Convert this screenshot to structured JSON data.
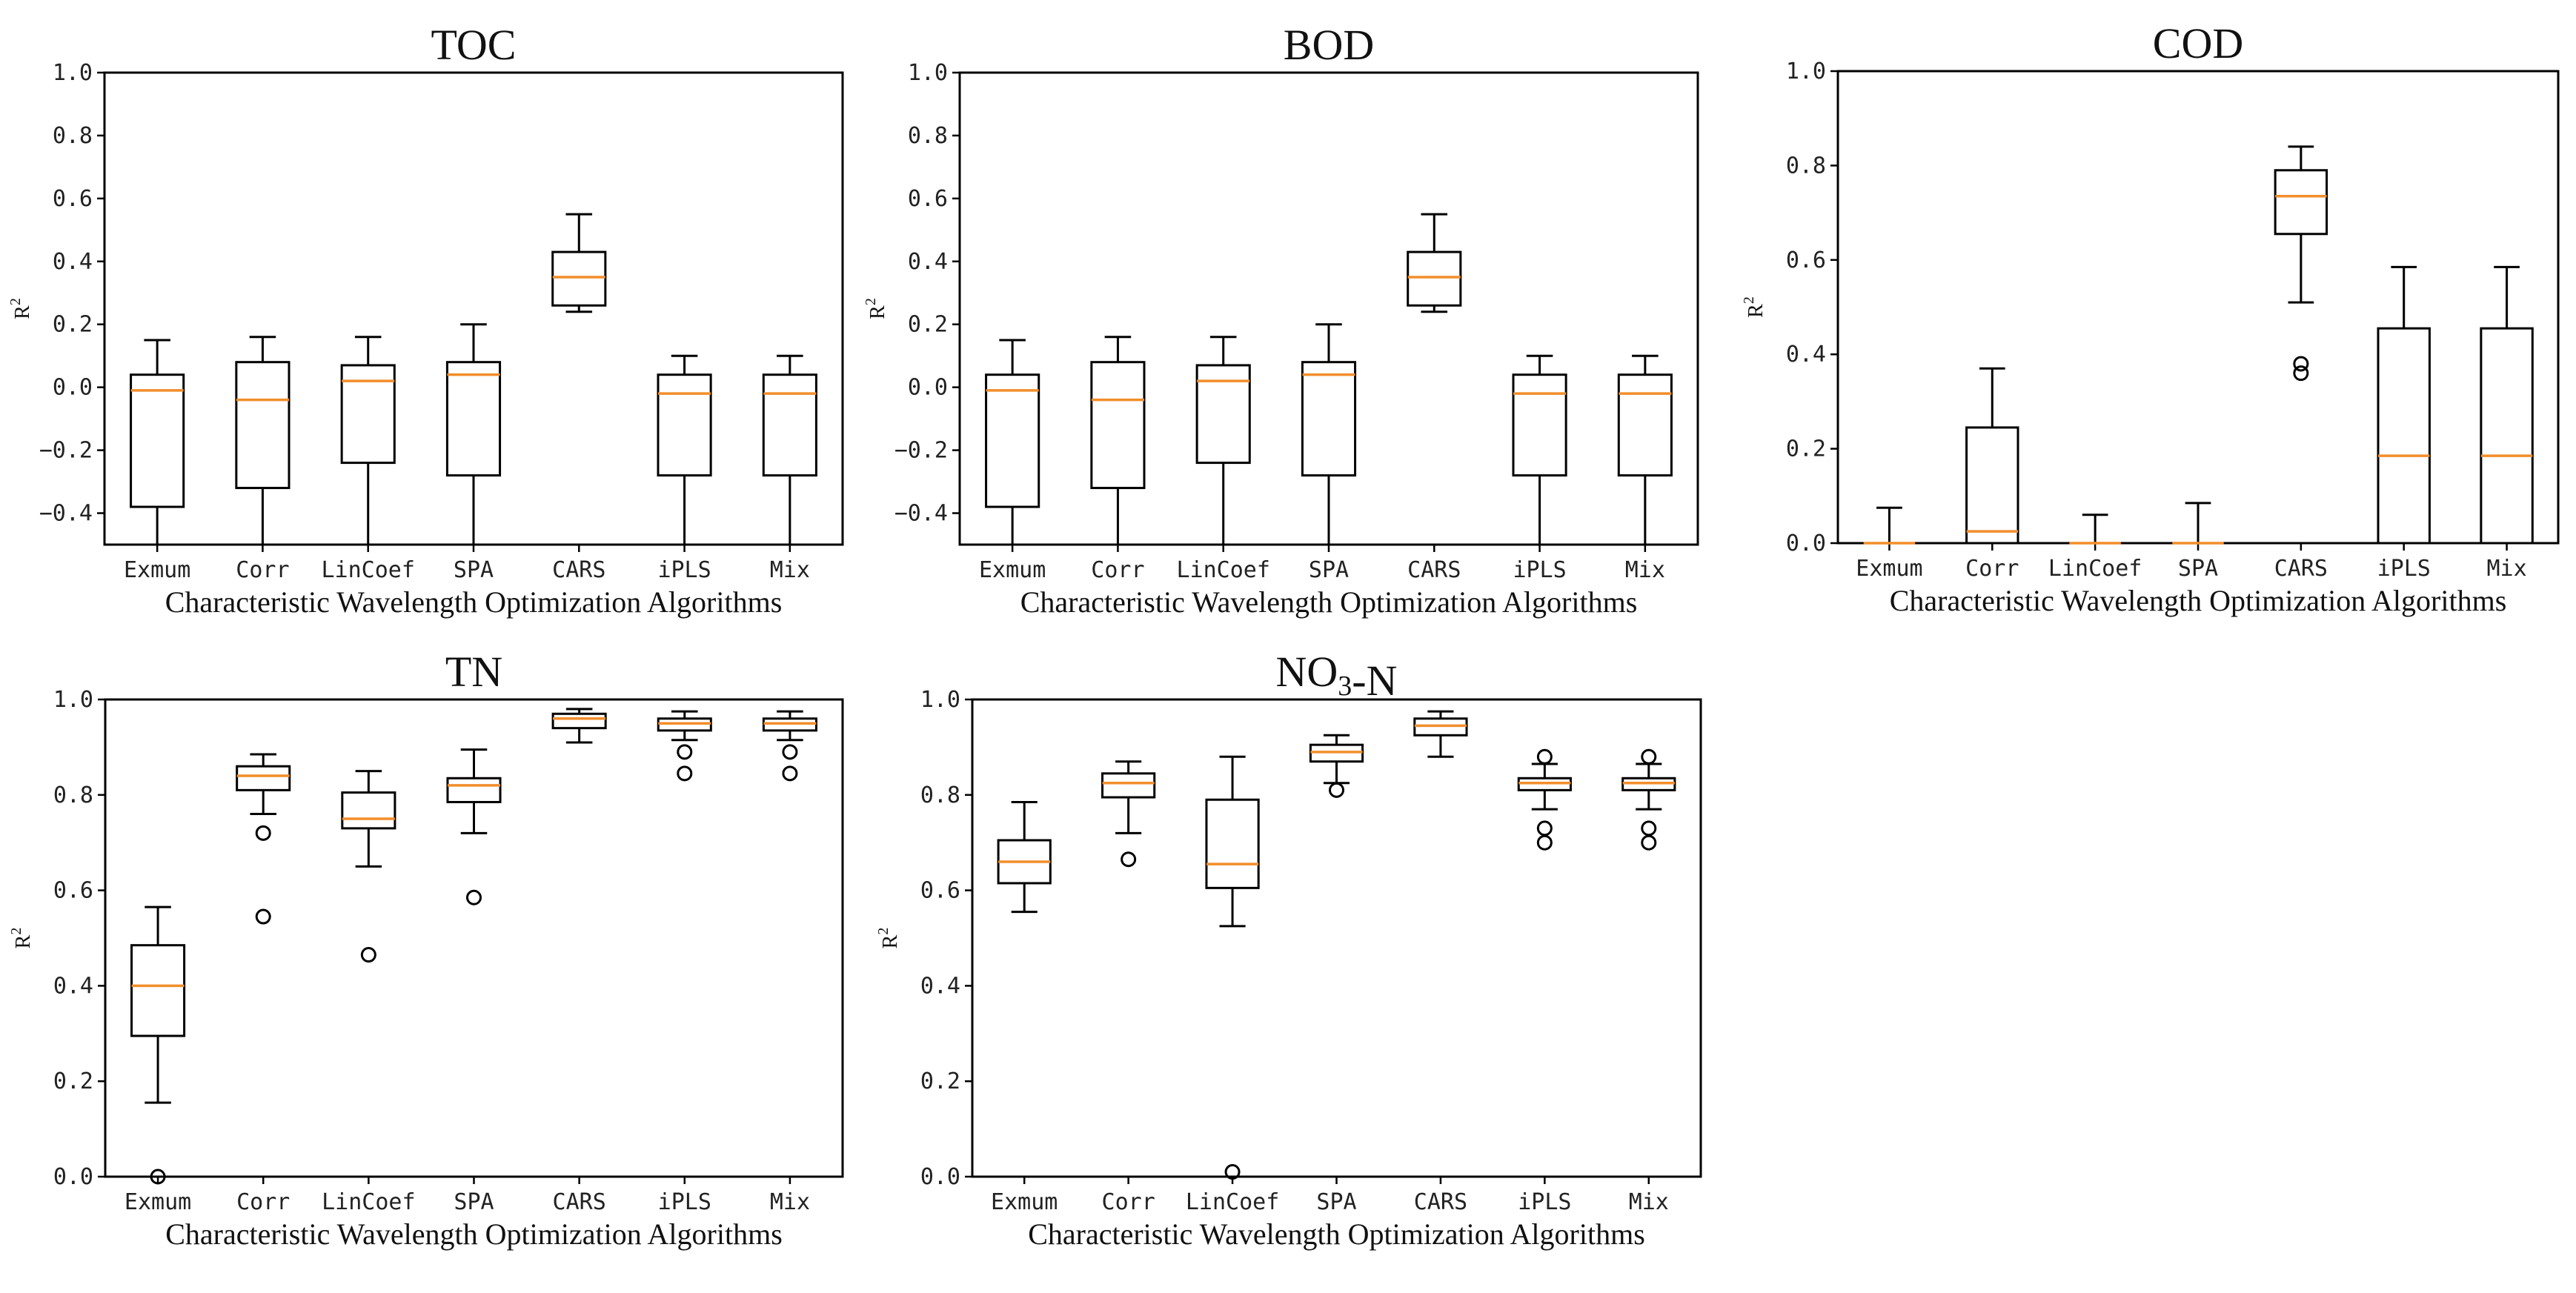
{
  "figure": {
    "categories": [
      "Exmum",
      "Corr",
      "LinCoef",
      "SPA",
      "CARS",
      "iPLS",
      "Mix"
    ],
    "xlabel": "Characteristic Wavelength Optimization Algorithms",
    "ylabel_base": "R",
    "ylabel_sup": "2",
    "colors": {
      "box": "#000000",
      "median": "#f28e2b",
      "background": "#ffffff"
    }
  },
  "chart_data": [
    {
      "type": "box",
      "title": "TOC",
      "title_parts": [
        {
          "text": "TOC",
          "sub": false
        }
      ],
      "ylim": [
        -0.5,
        1.0
      ],
      "yticks": [
        -0.4,
        -0.2,
        0.0,
        0.2,
        0.4,
        0.6,
        0.8,
        1.0
      ],
      "ytick_labels": [
        "−0.4",
        "−0.2",
        "0.0",
        "0.2",
        "0.4",
        "0.6",
        "0.8",
        "1.0"
      ],
      "boxes": [
        {
          "category": "Exmum",
          "whislo": -0.5,
          "q1": -0.38,
          "med": -0.01,
          "q3": 0.04,
          "whishi": 0.15,
          "fliers": []
        },
        {
          "category": "Corr",
          "whislo": -0.5,
          "q1": -0.32,
          "med": -0.04,
          "q3": 0.08,
          "whishi": 0.16,
          "fliers": []
        },
        {
          "category": "LinCoef",
          "whislo": -0.5,
          "q1": -0.24,
          "med": 0.02,
          "q3": 0.07,
          "whishi": 0.16,
          "fliers": []
        },
        {
          "category": "SPA",
          "whislo": -0.5,
          "q1": -0.28,
          "med": 0.04,
          "q3": 0.08,
          "whishi": 0.2,
          "fliers": []
        },
        {
          "category": "CARS",
          "whislo": 0.24,
          "q1": 0.26,
          "med": 0.35,
          "q3": 0.43,
          "whishi": 0.55,
          "fliers": []
        },
        {
          "category": "iPLS",
          "whislo": -0.5,
          "q1": -0.28,
          "med": -0.02,
          "q3": 0.04,
          "whishi": 0.1,
          "fliers": []
        },
        {
          "category": "Mix",
          "whislo": -0.5,
          "q1": -0.28,
          "med": -0.02,
          "q3": 0.04,
          "whishi": 0.1,
          "fliers": []
        }
      ]
    },
    {
      "type": "box",
      "title": "BOD",
      "title_parts": [
        {
          "text": "BOD",
          "sub": false
        }
      ],
      "ylim": [
        -0.5,
        1.0
      ],
      "yticks": [
        -0.4,
        -0.2,
        0.0,
        0.2,
        0.4,
        0.6,
        0.8,
        1.0
      ],
      "ytick_labels": [
        "−0.4",
        "−0.2",
        "0.0",
        "0.2",
        "0.4",
        "0.6",
        "0.8",
        "1.0"
      ],
      "boxes": [
        {
          "category": "Exmum",
          "whislo": -0.5,
          "q1": -0.38,
          "med": -0.01,
          "q3": 0.04,
          "whishi": 0.15,
          "fliers": []
        },
        {
          "category": "Corr",
          "whislo": -0.5,
          "q1": -0.32,
          "med": -0.04,
          "q3": 0.08,
          "whishi": 0.16,
          "fliers": []
        },
        {
          "category": "LinCoef",
          "whislo": -0.5,
          "q1": -0.24,
          "med": 0.02,
          "q3": 0.07,
          "whishi": 0.16,
          "fliers": []
        },
        {
          "category": "SPA",
          "whislo": -0.5,
          "q1": -0.28,
          "med": 0.04,
          "q3": 0.08,
          "whishi": 0.2,
          "fliers": []
        },
        {
          "category": "CARS",
          "whislo": 0.24,
          "q1": 0.26,
          "med": 0.35,
          "q3": 0.43,
          "whishi": 0.55,
          "fliers": []
        },
        {
          "category": "iPLS",
          "whislo": -0.5,
          "q1": -0.28,
          "med": -0.02,
          "q3": 0.04,
          "whishi": 0.1,
          "fliers": []
        },
        {
          "category": "Mix",
          "whislo": -0.5,
          "q1": -0.28,
          "med": -0.02,
          "q3": 0.04,
          "whishi": 0.1,
          "fliers": []
        }
      ]
    },
    {
      "type": "box",
      "title": "COD",
      "title_parts": [
        {
          "text": "COD",
          "sub": false
        }
      ],
      "ylim": [
        0.0,
        1.0
      ],
      "yticks": [
        0.0,
        0.2,
        0.4,
        0.6,
        0.8,
        1.0
      ],
      "ytick_labels": [
        "0.0",
        "0.2",
        "0.4",
        "0.6",
        "0.8",
        "1.0"
      ],
      "boxes": [
        {
          "category": "Exmum",
          "whislo": 0.0,
          "q1": 0.0,
          "med": 0.0,
          "q3": 0.0,
          "whishi": 0.075,
          "fliers": []
        },
        {
          "category": "Corr",
          "whislo": 0.0,
          "q1": 0.0,
          "med": 0.025,
          "q3": 0.245,
          "whishi": 0.37,
          "fliers": []
        },
        {
          "category": "LinCoef",
          "whislo": 0.0,
          "q1": 0.0,
          "med": 0.0,
          "q3": 0.0,
          "whishi": 0.06,
          "fliers": []
        },
        {
          "category": "SPA",
          "whislo": 0.0,
          "q1": 0.0,
          "med": 0.0,
          "q3": 0.0,
          "whishi": 0.085,
          "fliers": []
        },
        {
          "category": "CARS",
          "whislo": 0.51,
          "q1": 0.655,
          "med": 0.735,
          "q3": 0.79,
          "whishi": 0.84,
          "fliers": [
            0.38,
            0.36
          ]
        },
        {
          "category": "iPLS",
          "whislo": 0.0,
          "q1": 0.0,
          "med": 0.185,
          "q3": 0.455,
          "whishi": 0.585,
          "fliers": []
        },
        {
          "category": "Mix",
          "whislo": 0.0,
          "q1": 0.0,
          "med": 0.185,
          "q3": 0.455,
          "whishi": 0.585,
          "fliers": []
        }
      ]
    },
    {
      "type": "box",
      "title": "TN",
      "title_parts": [
        {
          "text": "TN",
          "sub": false
        }
      ],
      "ylim": [
        0.0,
        1.0
      ],
      "yticks": [
        0.0,
        0.2,
        0.4,
        0.6,
        0.8,
        1.0
      ],
      "ytick_labels": [
        "0.0",
        "0.2",
        "0.4",
        "0.6",
        "0.8",
        "1.0"
      ],
      "boxes": [
        {
          "category": "Exmum",
          "whislo": 0.155,
          "q1": 0.295,
          "med": 0.4,
          "q3": 0.485,
          "whishi": 0.565,
          "fliers": [
            0.0
          ]
        },
        {
          "category": "Corr",
          "whislo": 0.76,
          "q1": 0.81,
          "med": 0.84,
          "q3": 0.86,
          "whishi": 0.885,
          "fliers": [
            0.72,
            0.545
          ]
        },
        {
          "category": "LinCoef",
          "whislo": 0.65,
          "q1": 0.73,
          "med": 0.75,
          "q3": 0.805,
          "whishi": 0.85,
          "fliers": [
            0.465
          ]
        },
        {
          "category": "SPA",
          "whislo": 0.72,
          "q1": 0.785,
          "med": 0.82,
          "q3": 0.835,
          "whishi": 0.895,
          "fliers": [
            0.585
          ]
        },
        {
          "category": "CARS",
          "whislo": 0.91,
          "q1": 0.94,
          "med": 0.96,
          "q3": 0.97,
          "whishi": 0.98,
          "fliers": []
        },
        {
          "category": "iPLS",
          "whislo": 0.915,
          "q1": 0.935,
          "med": 0.95,
          "q3": 0.96,
          "whishi": 0.975,
          "fliers": [
            0.89,
            0.845
          ]
        },
        {
          "category": "Mix",
          "whislo": 0.915,
          "q1": 0.935,
          "med": 0.95,
          "q3": 0.96,
          "whishi": 0.975,
          "fliers": [
            0.89,
            0.845
          ]
        }
      ]
    },
    {
      "type": "box",
      "title": "NO3-N",
      "title_parts": [
        {
          "text": "NO",
          "sub": false
        },
        {
          "text": "3",
          "sub": true
        },
        {
          "text": "-N",
          "sub": false
        }
      ],
      "ylim": [
        0.0,
        1.0
      ],
      "yticks": [
        0.0,
        0.2,
        0.4,
        0.6,
        0.8,
        1.0
      ],
      "ytick_labels": [
        "0.0",
        "0.2",
        "0.4",
        "0.6",
        "0.8",
        "1.0"
      ],
      "boxes": [
        {
          "category": "Exmum",
          "whislo": 0.555,
          "q1": 0.615,
          "med": 0.66,
          "q3": 0.705,
          "whishi": 0.785,
          "fliers": []
        },
        {
          "category": "Corr",
          "whislo": 0.72,
          "q1": 0.795,
          "med": 0.825,
          "q3": 0.845,
          "whishi": 0.87,
          "fliers": [
            0.665
          ]
        },
        {
          "category": "LinCoef",
          "whislo": 0.525,
          "q1": 0.605,
          "med": 0.655,
          "q3": 0.79,
          "whishi": 0.88,
          "fliers": [
            0.01
          ]
        },
        {
          "category": "SPA",
          "whislo": 0.825,
          "q1": 0.87,
          "med": 0.89,
          "q3": 0.905,
          "whishi": 0.925,
          "fliers": [
            0.81
          ]
        },
        {
          "category": "CARS",
          "whislo": 0.88,
          "q1": 0.925,
          "med": 0.945,
          "q3": 0.96,
          "whishi": 0.975,
          "fliers": []
        },
        {
          "category": "iPLS",
          "whislo": 0.77,
          "q1": 0.81,
          "med": 0.825,
          "q3": 0.835,
          "whishi": 0.865,
          "fliers": [
            0.88,
            0.73,
            0.7
          ]
        },
        {
          "category": "Mix",
          "whislo": 0.77,
          "q1": 0.81,
          "med": 0.825,
          "q3": 0.835,
          "whishi": 0.865,
          "fliers": [
            0.88,
            0.73,
            0.7
          ]
        }
      ]
    }
  ]
}
